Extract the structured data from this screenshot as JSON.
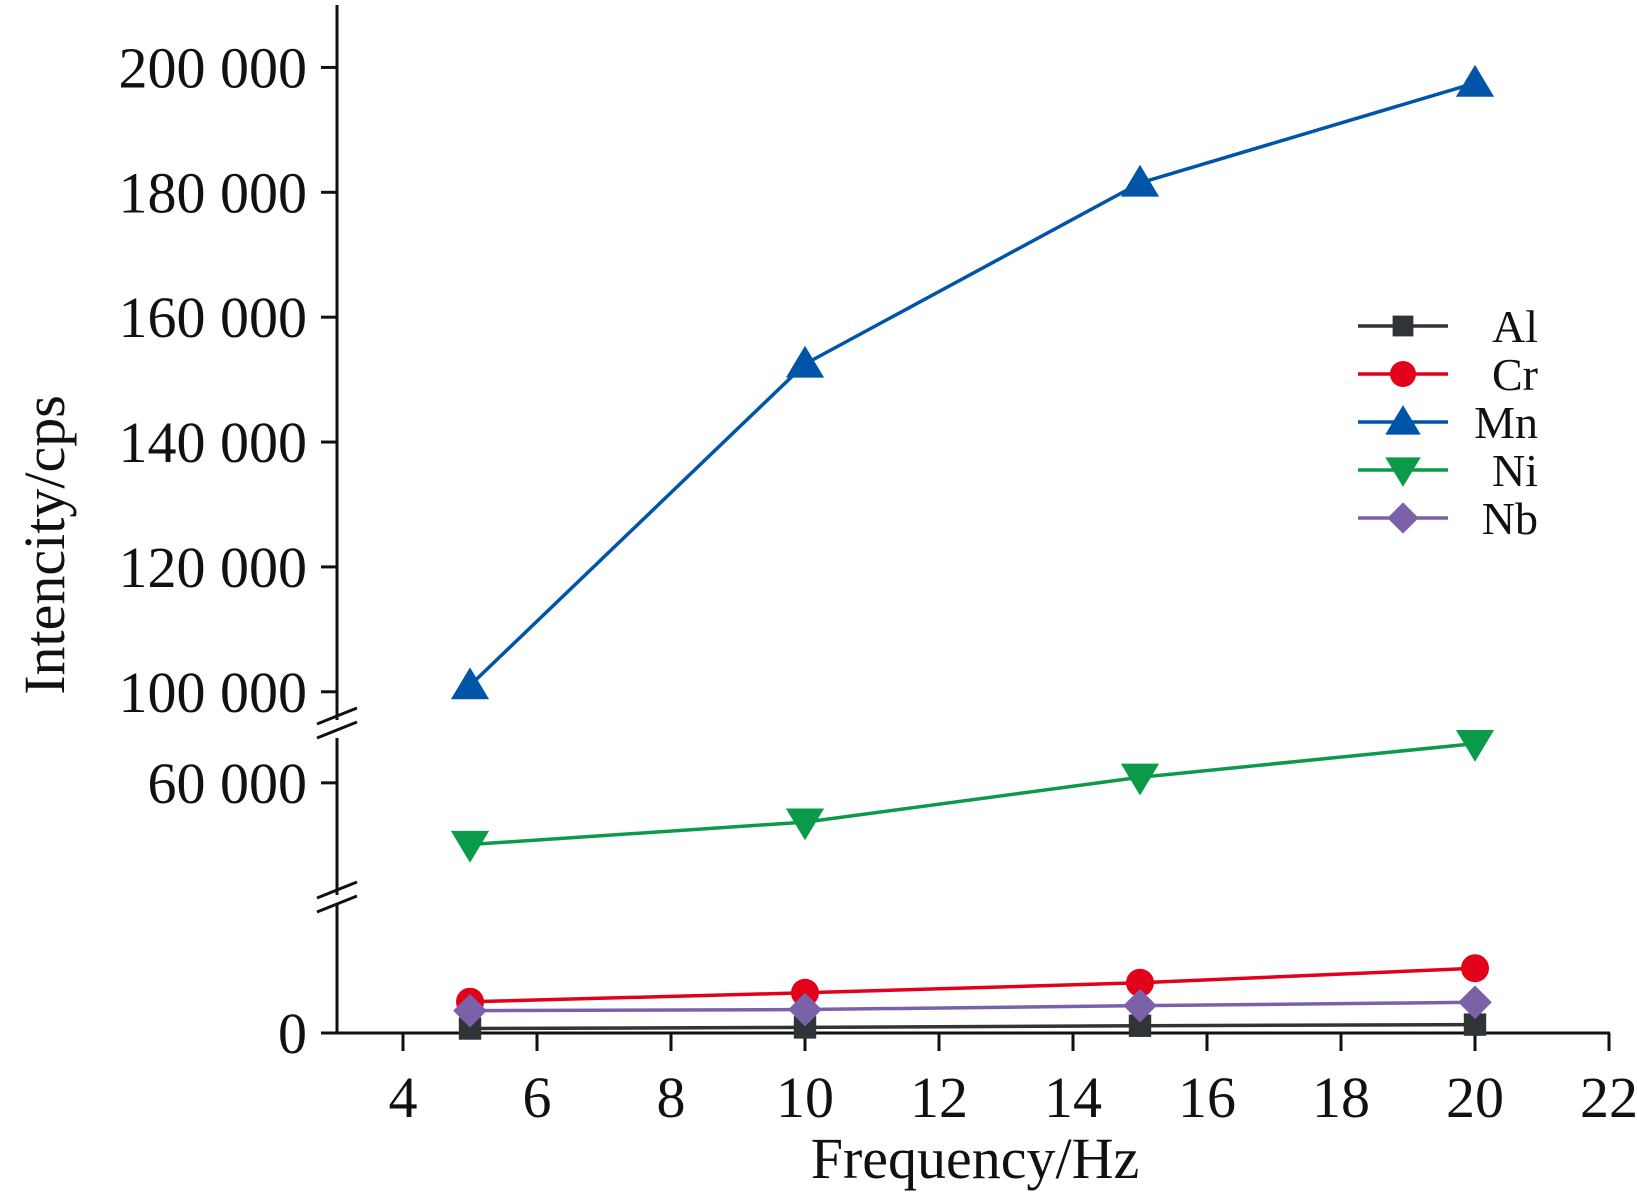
{
  "chart_data": {
    "type": "line",
    "title": "",
    "xlabel": "Frequency/Hz",
    "ylabel": "Intencity/cps",
    "xlim": [
      3,
      22
    ],
    "x_ticks": [
      4,
      6,
      8,
      10,
      12,
      14,
      16,
      18,
      20,
      22
    ],
    "x_tick_labels": [
      "4",
      "6",
      "8",
      "10",
      "12",
      "14",
      "16",
      "18",
      "20",
      "22"
    ],
    "y_axis_breaks": 2,
    "y_segments": [
      {
        "name": "lower",
        "range": [
          0,
          12000
        ],
        "tick_values": [
          0
        ],
        "tick_labels": [
          "0"
        ]
      },
      {
        "name": "middle",
        "range": [
          50000,
          64000
        ],
        "tick_values": [
          60000
        ],
        "tick_labels": [
          "60 000"
        ]
      },
      {
        "name": "upper",
        "range": [
          95000,
          210000
        ],
        "tick_values": [
          100000,
          120000,
          140000,
          160000,
          180000,
          200000
        ],
        "tick_labels": [
          "100 000",
          "120 000",
          "140 000",
          "160 000",
          "180 000",
          "200 000"
        ]
      }
    ],
    "x": [
      5,
      10,
      15,
      20
    ],
    "series": [
      {
        "name": "Al",
        "marker": "square",
        "color": "#2f3438",
        "values": [
          400,
          500,
          650,
          750
        ]
      },
      {
        "name": "Cr",
        "marker": "circle",
        "color": "#e3001b",
        "values": [
          2800,
          3600,
          4500,
          5800
        ]
      },
      {
        "name": "Mn",
        "marker": "triangle-up",
        "color": "#0055a8",
        "values": [
          101000,
          152500,
          181500,
          197500
        ]
      },
      {
        "name": "Ni",
        "marker": "triangle-down",
        "color": "#0a9a4a",
        "values": [
          54500,
          56500,
          60500,
          63500
        ]
      },
      {
        "name": "Nb",
        "marker": "diamond",
        "color": "#7b62a8",
        "values": [
          2000,
          2100,
          2450,
          2750
        ]
      }
    ],
    "legend": {
      "position": "right",
      "entries": [
        "Al",
        "Cr",
        "Mn",
        "Ni",
        "Nb"
      ]
    }
  }
}
